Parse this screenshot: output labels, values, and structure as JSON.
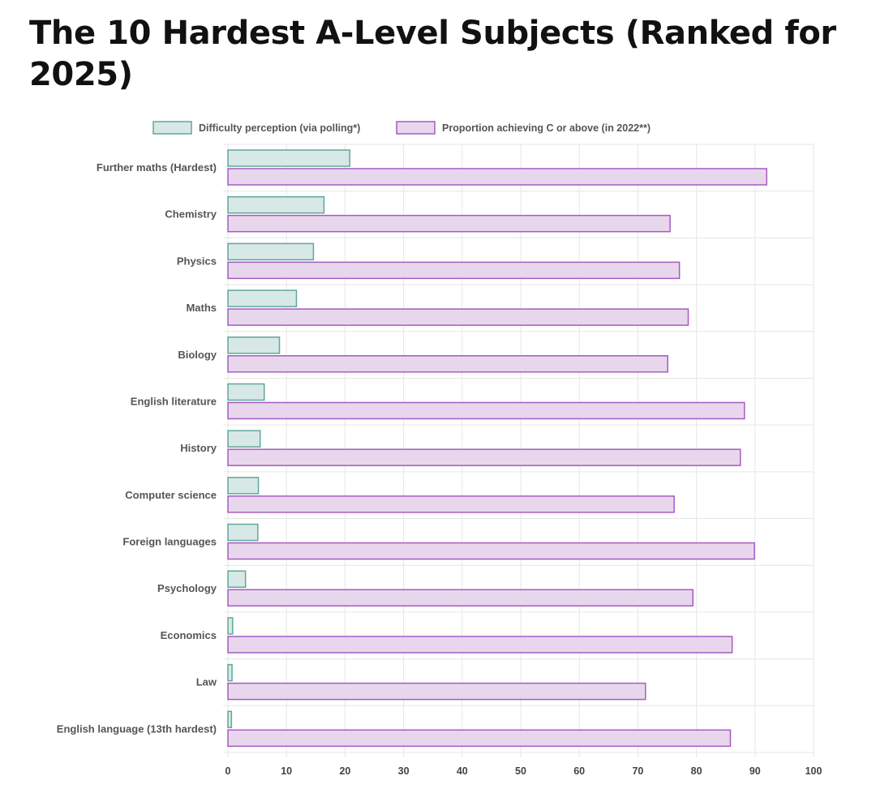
{
  "page": {
    "title": "The 10 Hardest A-Level Subjects (Ranked for 2025)"
  },
  "colors": {
    "difficulty_fill": "#d8e8e6",
    "difficulty_stroke": "#5fa89b",
    "pass_fill": "#e8d7ec",
    "pass_stroke": "#a55bc2",
    "grid": "#e6e6e6"
  },
  "chart_data": {
    "type": "bar",
    "orientation": "horizontal",
    "categories": [
      "Further maths (Hardest)",
      "Chemistry",
      "Physics",
      "Maths",
      "Biology",
      "English literature",
      "History",
      "Computer science",
      "Foreign languages",
      "Psychology",
      "Economics",
      "Law",
      "English language (13th hardest)"
    ],
    "series": [
      {
        "name": "Difficulty perception (via polling*)",
        "values": [
          20.8,
          16.4,
          14.6,
          11.7,
          8.8,
          6.2,
          5.5,
          5.2,
          5.1,
          3.0,
          0.8,
          0.7,
          0.6
        ]
      },
      {
        "name": "Proportion achieving C or above (in 2022**)",
        "values": [
          92.0,
          75.5,
          77.1,
          78.6,
          75.1,
          88.2,
          87.5,
          76.2,
          89.9,
          79.4,
          86.1,
          71.3,
          85.8
        ]
      }
    ],
    "xlim": [
      0,
      100
    ],
    "xticks": [
      "0",
      "10",
      "20",
      "30",
      "40",
      "50",
      "60",
      "70",
      "80",
      "90",
      "100"
    ],
    "grid": true,
    "legend_position": "top"
  }
}
